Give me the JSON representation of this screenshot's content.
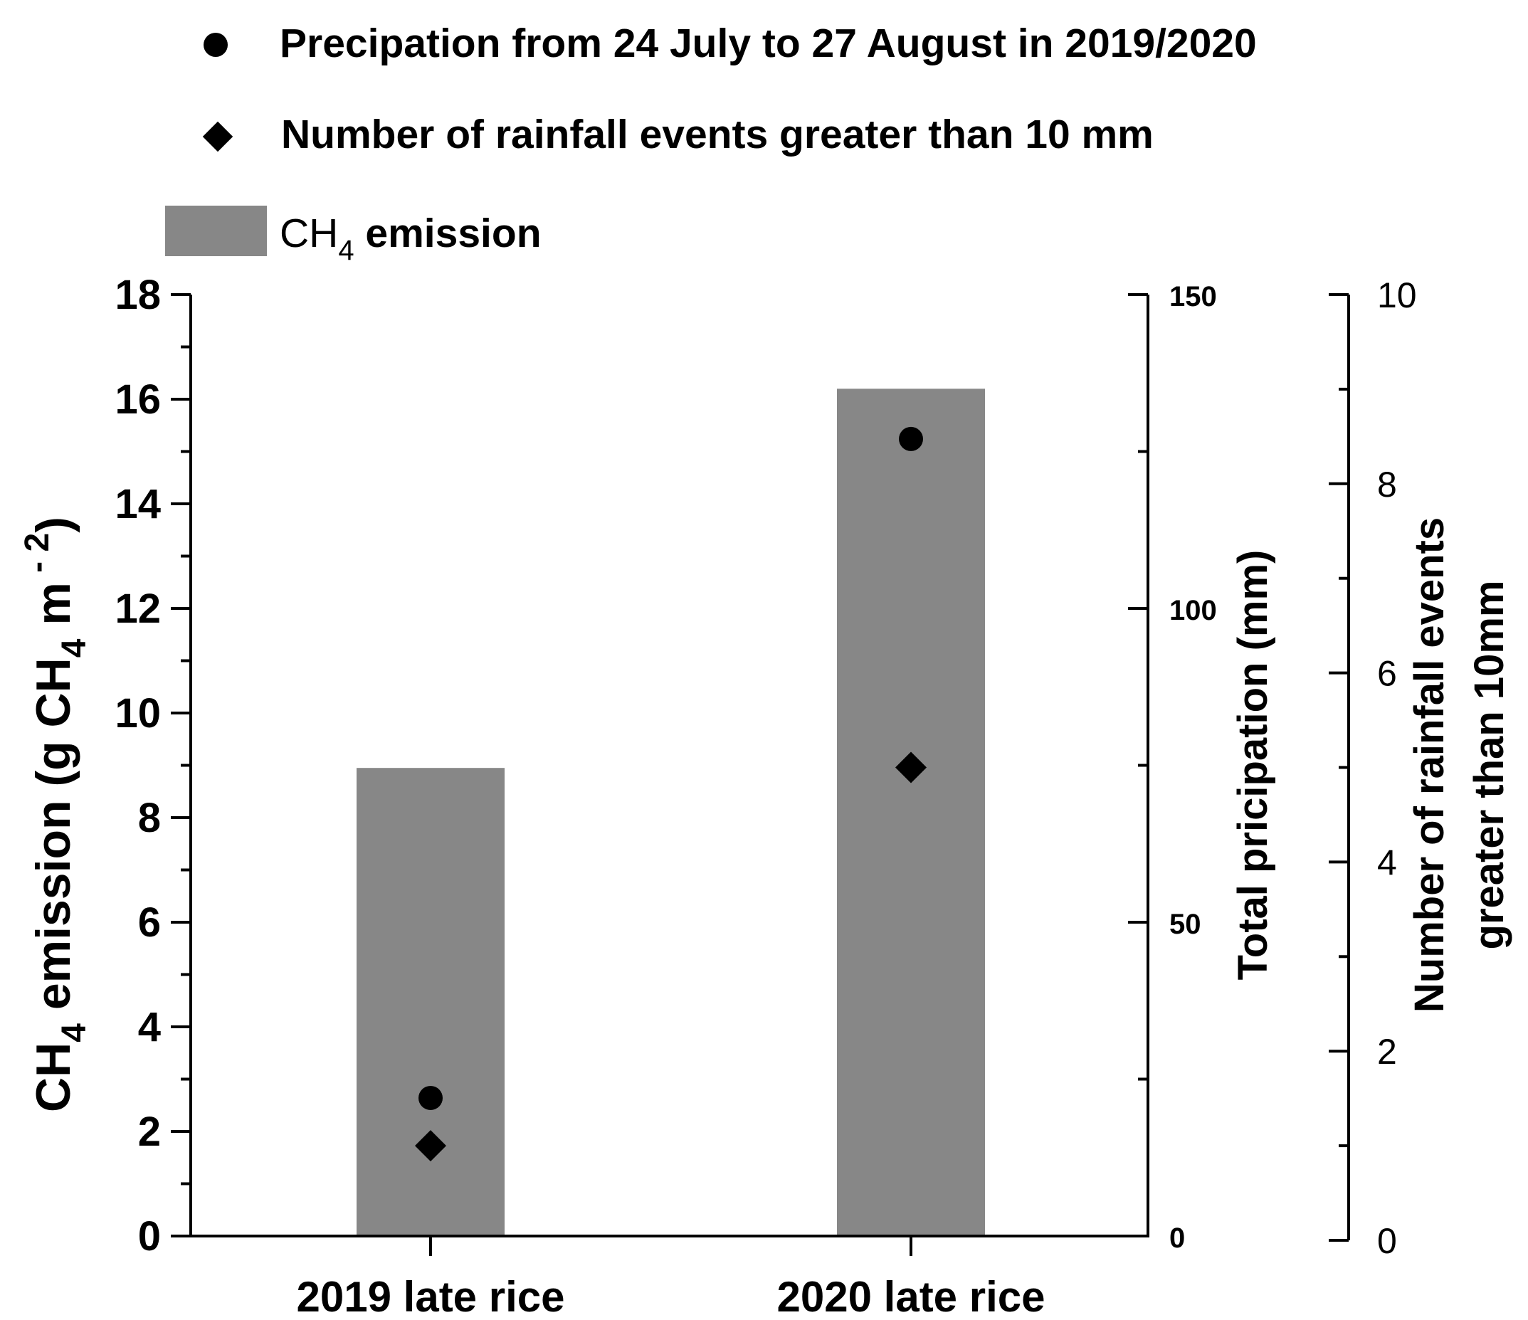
{
  "chart_data": {
    "type": "bar",
    "categories": [
      "2019 late rice",
      "2020 late rice"
    ],
    "series": [
      {
        "name": "CH4 emission",
        "kind": "bar",
        "axis": "left",
        "color": "#878787",
        "values": [
          8.95,
          16.2
        ]
      },
      {
        "name": "Precipation from 24 July to 27 August in 2019/2020",
        "kind": "circle",
        "axis": "right1",
        "color": "#000000",
        "values": [
          22,
          127
        ]
      },
      {
        "name": "Number of rainfall events greater than 10 mm",
        "kind": "diamond",
        "axis": "right2",
        "color": "#000000",
        "values": [
          1,
          5
        ]
      }
    ],
    "legend": [
      {
        "marker": "circle",
        "label": "Precipation from 24 July to 27 August in 2019/2020"
      },
      {
        "marker": "diamond",
        "label": "Number of rainfall events greater than 10 mm"
      },
      {
        "marker": "rect",
        "label_main": "CH",
        "label_sub": "4",
        "label_rest": " emission"
      }
    ],
    "legend_position": "top",
    "axes": {
      "left": {
        "label_main": "CH",
        "label_sub1": "4",
        "label_mid": " emission (g CH",
        "label_sub2": "4",
        "label_mid2": " m",
        "label_sup": " - 2",
        "label_end": ")",
        "ylim": [
          0,
          18
        ],
        "ticks": [
          "0",
          "2",
          "4",
          "6",
          "8",
          "10",
          "12",
          "14",
          "16",
          "18"
        ]
      },
      "right1": {
        "label": "Total pricipation (mm)",
        "ylim": [
          0,
          150
        ],
        "ticks": [
          "0",
          "50",
          "100",
          "150"
        ]
      },
      "right2": {
        "label_line1": "Number of rainfall events",
        "label_line2": "greater than 10mm",
        "ylim": [
          0,
          10
        ],
        "ticks": [
          "0",
          "2",
          "4",
          "6",
          "8",
          "10"
        ]
      }
    },
    "grid": false
  }
}
